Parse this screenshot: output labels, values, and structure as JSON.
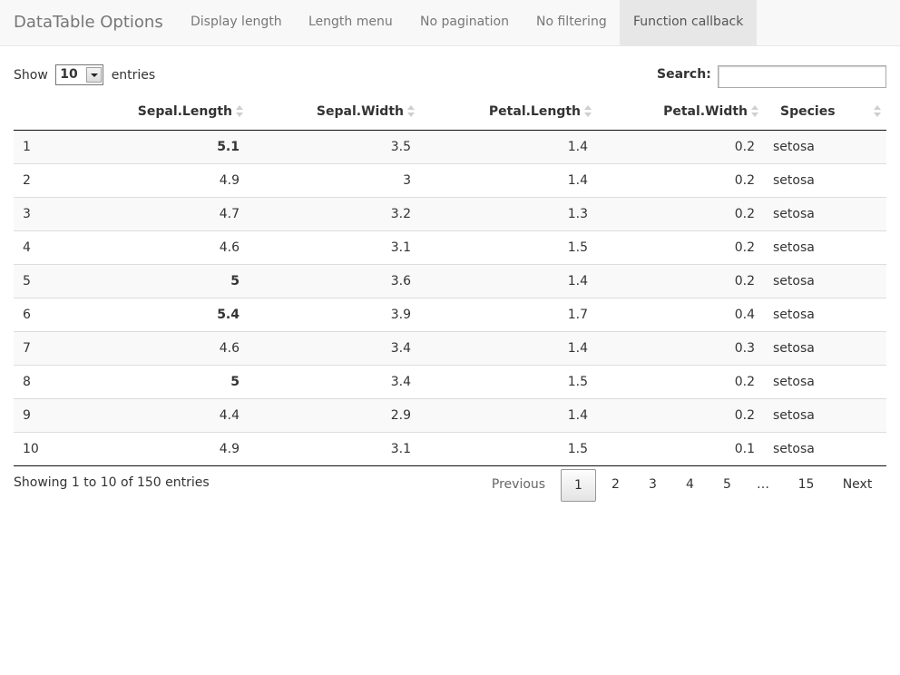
{
  "navbar": {
    "brand": "DataTable Options",
    "items": [
      {
        "label": "Display length",
        "active": false
      },
      {
        "label": "Length menu",
        "active": false
      },
      {
        "label": "No pagination",
        "active": false
      },
      {
        "label": "No filtering",
        "active": false
      },
      {
        "label": "Function callback",
        "active": true
      }
    ]
  },
  "length": {
    "show_label": "Show",
    "selected": "10",
    "entries_label": "entries"
  },
  "search": {
    "label": "Search:",
    "value": ""
  },
  "table": {
    "headers": [
      "",
      "Sepal.Length",
      "Sepal.Width",
      "Petal.Length",
      "Petal.Width",
      "Species"
    ],
    "rows": [
      {
        "id": "1",
        "sepal_length": "5.1",
        "sepal_width": "3.5",
        "petal_length": "1.4",
        "petal_width": "0.2",
        "species": "setosa",
        "bold": true
      },
      {
        "id": "2",
        "sepal_length": "4.9",
        "sepal_width": "3",
        "petal_length": "1.4",
        "petal_width": "0.2",
        "species": "setosa",
        "bold": false
      },
      {
        "id": "3",
        "sepal_length": "4.7",
        "sepal_width": "3.2",
        "petal_length": "1.3",
        "petal_width": "0.2",
        "species": "setosa",
        "bold": false
      },
      {
        "id": "4",
        "sepal_length": "4.6",
        "sepal_width": "3.1",
        "petal_length": "1.5",
        "petal_width": "0.2",
        "species": "setosa",
        "bold": false
      },
      {
        "id": "5",
        "sepal_length": "5",
        "sepal_width": "3.6",
        "petal_length": "1.4",
        "petal_width": "0.2",
        "species": "setosa",
        "bold": true
      },
      {
        "id": "6",
        "sepal_length": "5.4",
        "sepal_width": "3.9",
        "petal_length": "1.7",
        "petal_width": "0.4",
        "species": "setosa",
        "bold": true
      },
      {
        "id": "7",
        "sepal_length": "4.6",
        "sepal_width": "3.4",
        "petal_length": "1.4",
        "petal_width": "0.3",
        "species": "setosa",
        "bold": false
      },
      {
        "id": "8",
        "sepal_length": "5",
        "sepal_width": "3.4",
        "petal_length": "1.5",
        "petal_width": "0.2",
        "species": "setosa",
        "bold": true
      },
      {
        "id": "9",
        "sepal_length": "4.4",
        "sepal_width": "2.9",
        "petal_length": "1.4",
        "petal_width": "0.2",
        "species": "setosa",
        "bold": false
      },
      {
        "id": "10",
        "sepal_length": "4.9",
        "sepal_width": "3.1",
        "petal_length": "1.5",
        "petal_width": "0.1",
        "species": "setosa",
        "bold": false
      }
    ]
  },
  "footer": {
    "info": "Showing 1 to 10 of 150 entries",
    "pagination": {
      "previous": "Previous",
      "pages": [
        "1",
        "2",
        "3",
        "4",
        "5"
      ],
      "ellipsis": "…",
      "last": "15",
      "next": "Next",
      "current": "1"
    }
  }
}
